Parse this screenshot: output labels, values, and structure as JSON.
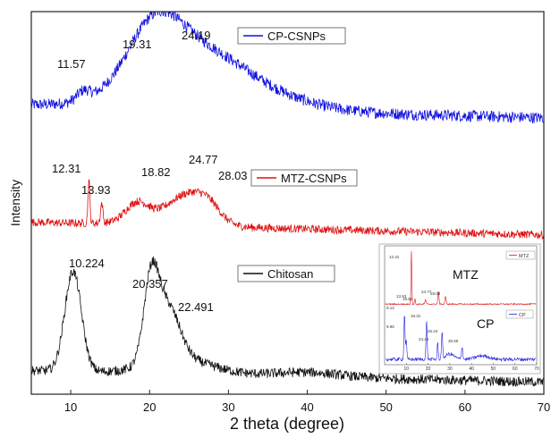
{
  "chart_data": {
    "type": "line",
    "xlabel": "2 theta (degree)",
    "ylabel": "Intensity",
    "xlim": [
      5,
      70
    ],
    "xticks": [
      10,
      20,
      30,
      40,
      50,
      60,
      70
    ],
    "grid": false,
    "colors": {
      "cp_csnps": "#1010e0",
      "mtz_csnps": "#e01010",
      "chitosan": "#111111"
    },
    "series": [
      {
        "name": "CP-CSNPs",
        "color": "#1010e0",
        "peaks": [
          {
            "x": 11.57,
            "label": "11.57"
          },
          {
            "x": 19.31,
            "label": "19.31"
          },
          {
            "x": 24.19,
            "label": "24.19"
          }
        ]
      },
      {
        "name": "MTZ-CSNPs",
        "color": "#e01010",
        "peaks": [
          {
            "x": 12.31,
            "label": "12.31"
          },
          {
            "x": 13.93,
            "label": "13.93"
          },
          {
            "x": 18.82,
            "label": "18.82"
          },
          {
            "x": 24.77,
            "label": "24.77"
          },
          {
            "x": 28.03,
            "label": "28.03"
          }
        ]
      },
      {
        "name": "Chitosan",
        "color": "#111111",
        "peaks": [
          {
            "x": 10.224,
            "label": "10.224"
          },
          {
            "x": 20.357,
            "label": "20.357"
          },
          {
            "x": 22.491,
            "label": "22.491"
          }
        ]
      }
    ],
    "inset": {
      "xlim": [
        0,
        70
      ],
      "xticks": [
        10,
        20,
        30,
        40,
        50,
        60,
        70
      ],
      "series": [
        {
          "name": "MTZ",
          "legend": "MTZ",
          "color": "#e01010",
          "peaks": [
            {
              "x": 12.31,
              "label": "12.31"
            },
            {
              "x": 13.93,
              "label": "13.93"
            },
            {
              "x": 18.82,
              "label": "18.82"
            },
            {
              "x": 24.77,
              "label": "24.77"
            },
            {
              "x": 28.03,
              "label": "28.03"
            }
          ]
        },
        {
          "name": "CP",
          "legend": "CP",
          "color": "#2020e0",
          "peaks": [
            {
              "x": 9.14,
              "label": "9.14"
            },
            {
              "x": 9.95,
              "label": "9.95"
            },
            {
              "x": 19.31,
              "label": "19.31"
            },
            {
              "x": 24.44,
              "label": "24.44"
            },
            {
              "x": 26.44,
              "label": "26.44"
            },
            {
              "x": 35.65,
              "label": "35.65"
            }
          ]
        }
      ]
    }
  }
}
